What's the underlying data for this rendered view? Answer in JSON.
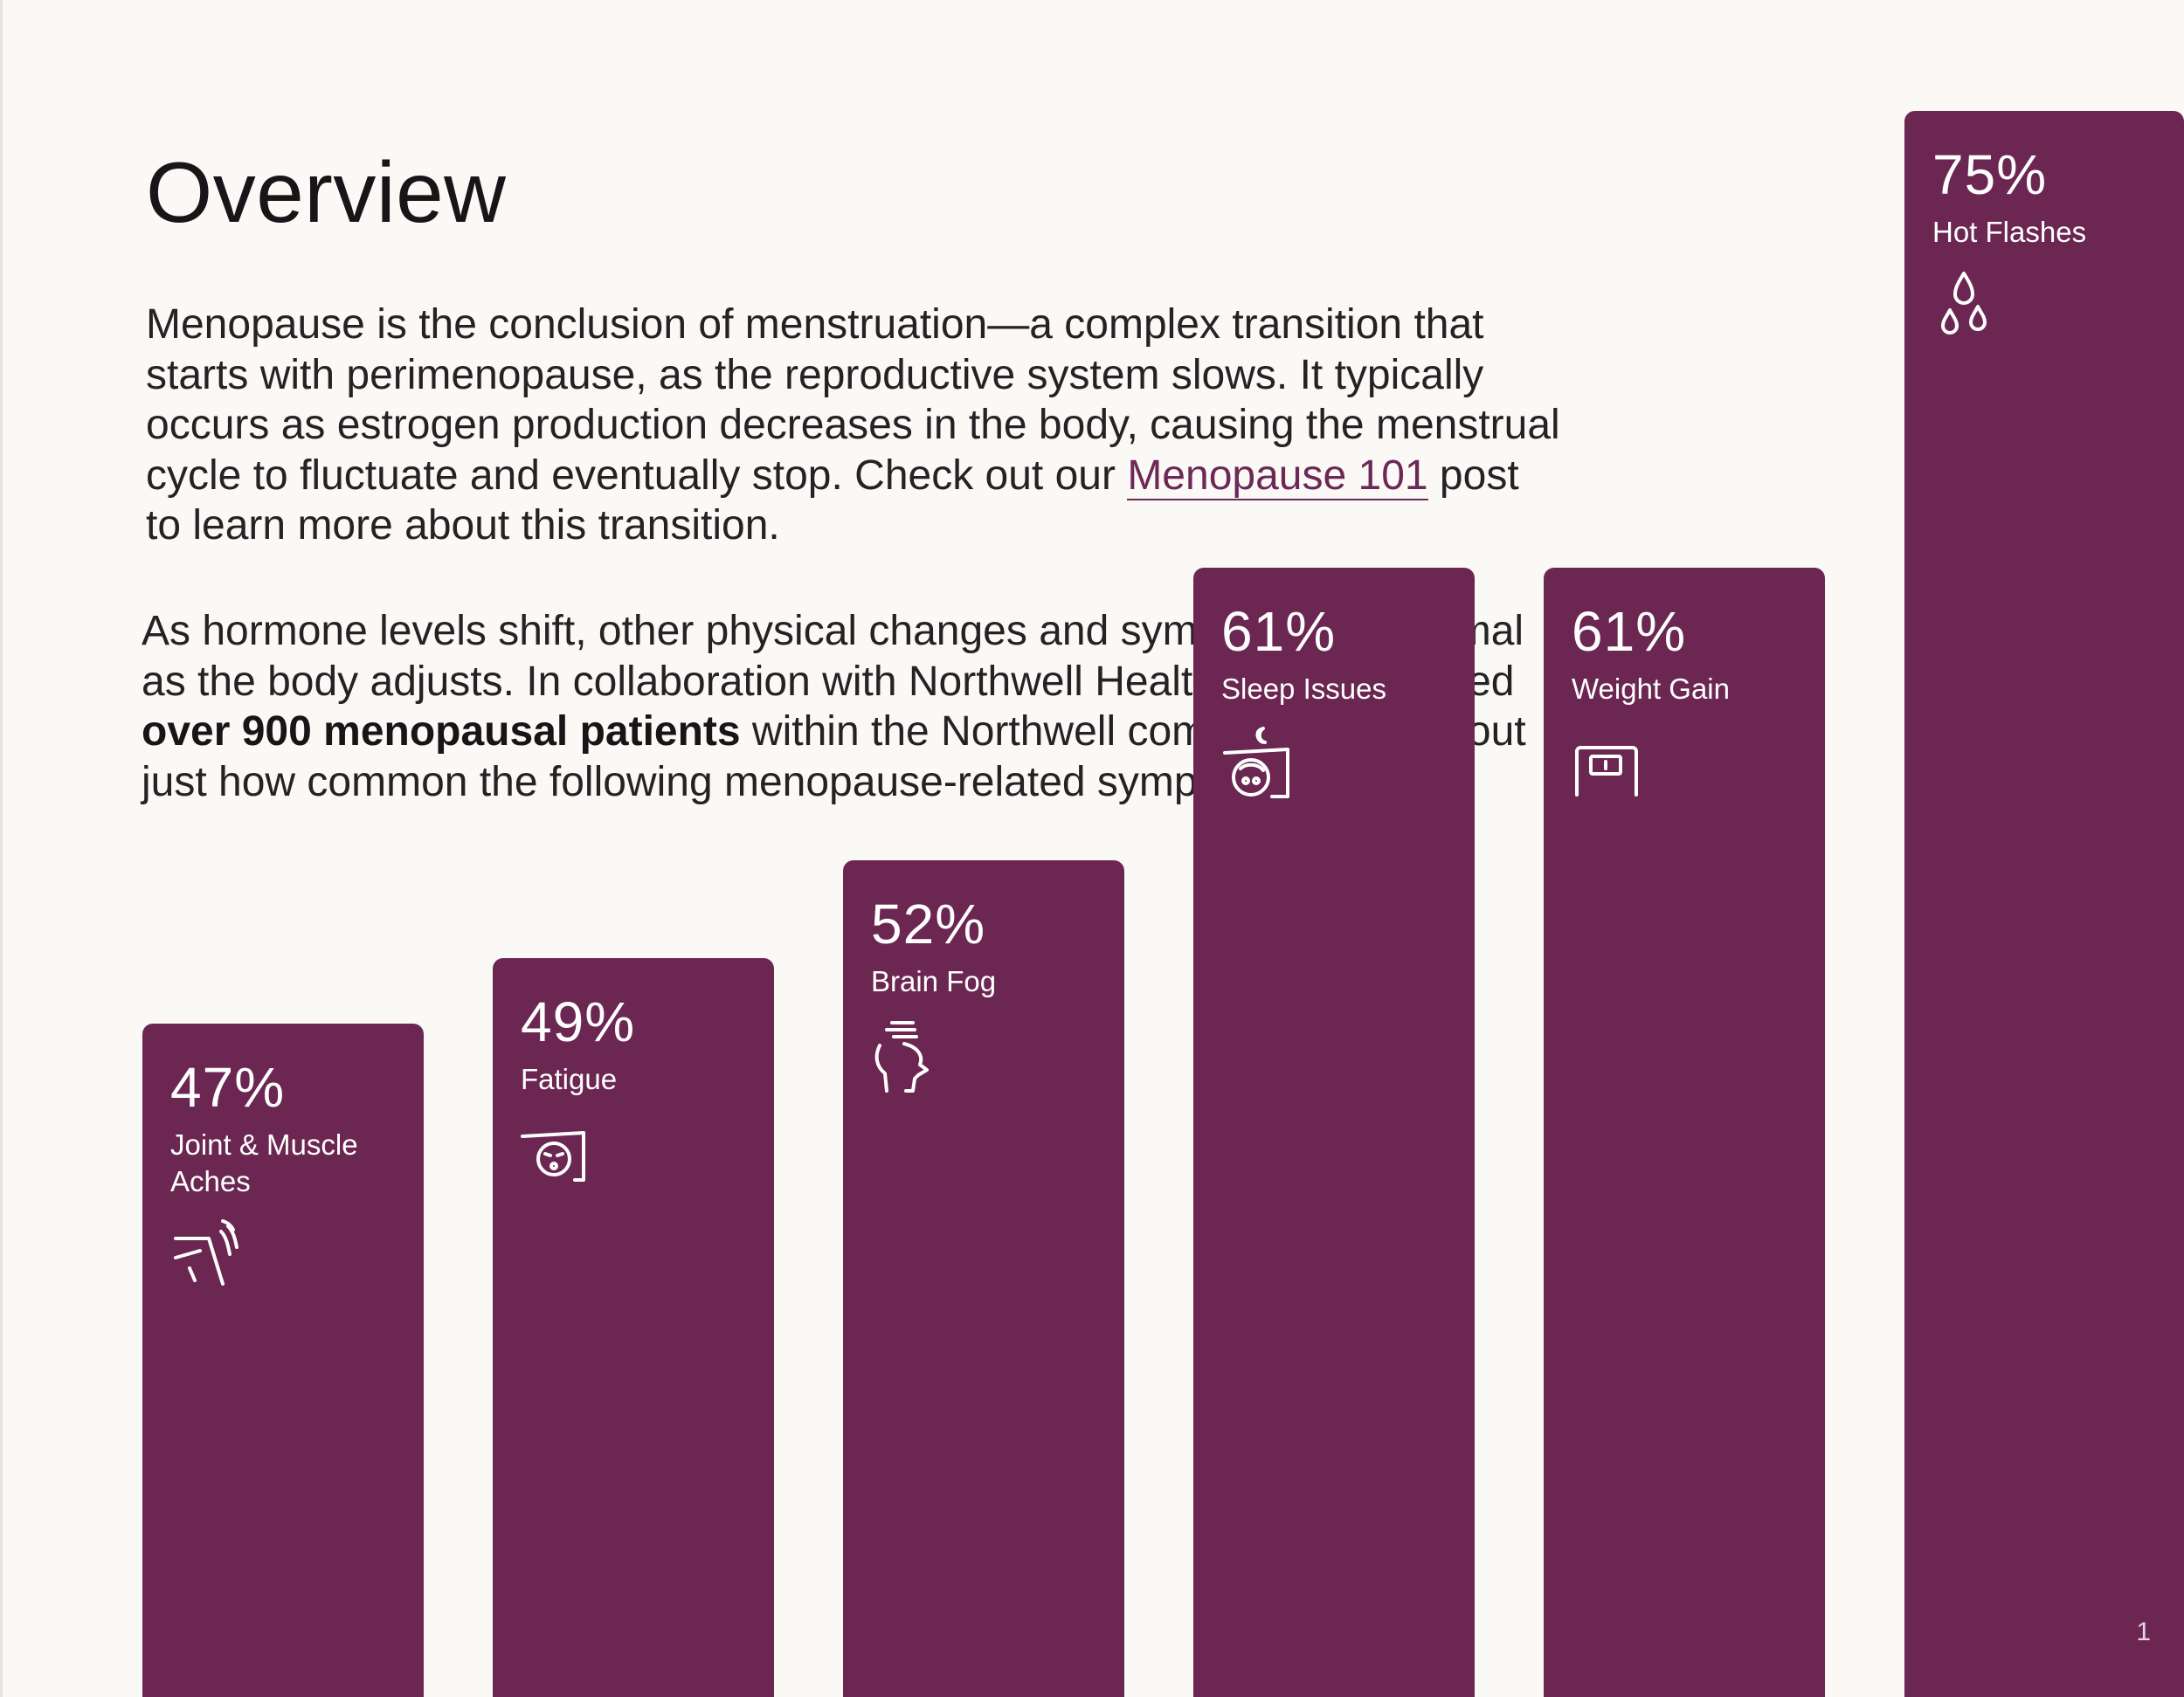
{
  "page": {
    "title": "Overview",
    "page_number": "1"
  },
  "intro": {
    "part1": "Menopause is the conclusion of menstruation—a complex transition that starts with perimenopause, as the reproductive system slows. It typically occurs as estrogen production decreases in the body, causing the menstrual cycle to fluctuate and eventually stop. Check out our ",
    "link_text": "Menopause 101",
    "part2": " post to learn more about this transition."
  },
  "survey": {
    "part1": "As hormone levels shift, other physical changes and symptoms are normal as the body adjusts. In collaboration with Northwell Health, Upliv surveyed ",
    "bold": "over 900 menopausal patients",
    "part2": " within the Northwell community to find out just how common the following menopause-related symptoms are."
  },
  "chart_data": {
    "type": "bar",
    "categories": [
      "Joint & Muscle Aches",
      "Fatigue",
      "Brain Fog",
      "Sleep Issues",
      "Weight Gain",
      "Hot Flashes"
    ],
    "values": [
      47,
      49,
      52,
      61,
      61,
      75
    ],
    "value_labels": [
      "47%",
      "49%",
      "52%",
      "61%",
      "61%",
      "75%"
    ],
    "icons": [
      "joint-pain-icon",
      "fatigue-icon",
      "brain-fog-icon",
      "sleep-icon",
      "weight-scale-icon",
      "hot-flash-drops-icon"
    ],
    "bar_color": "#6b2752"
  },
  "colors": {
    "accent": "#6b2752",
    "link": "#6d2856",
    "background": "#fbf9f6"
  }
}
